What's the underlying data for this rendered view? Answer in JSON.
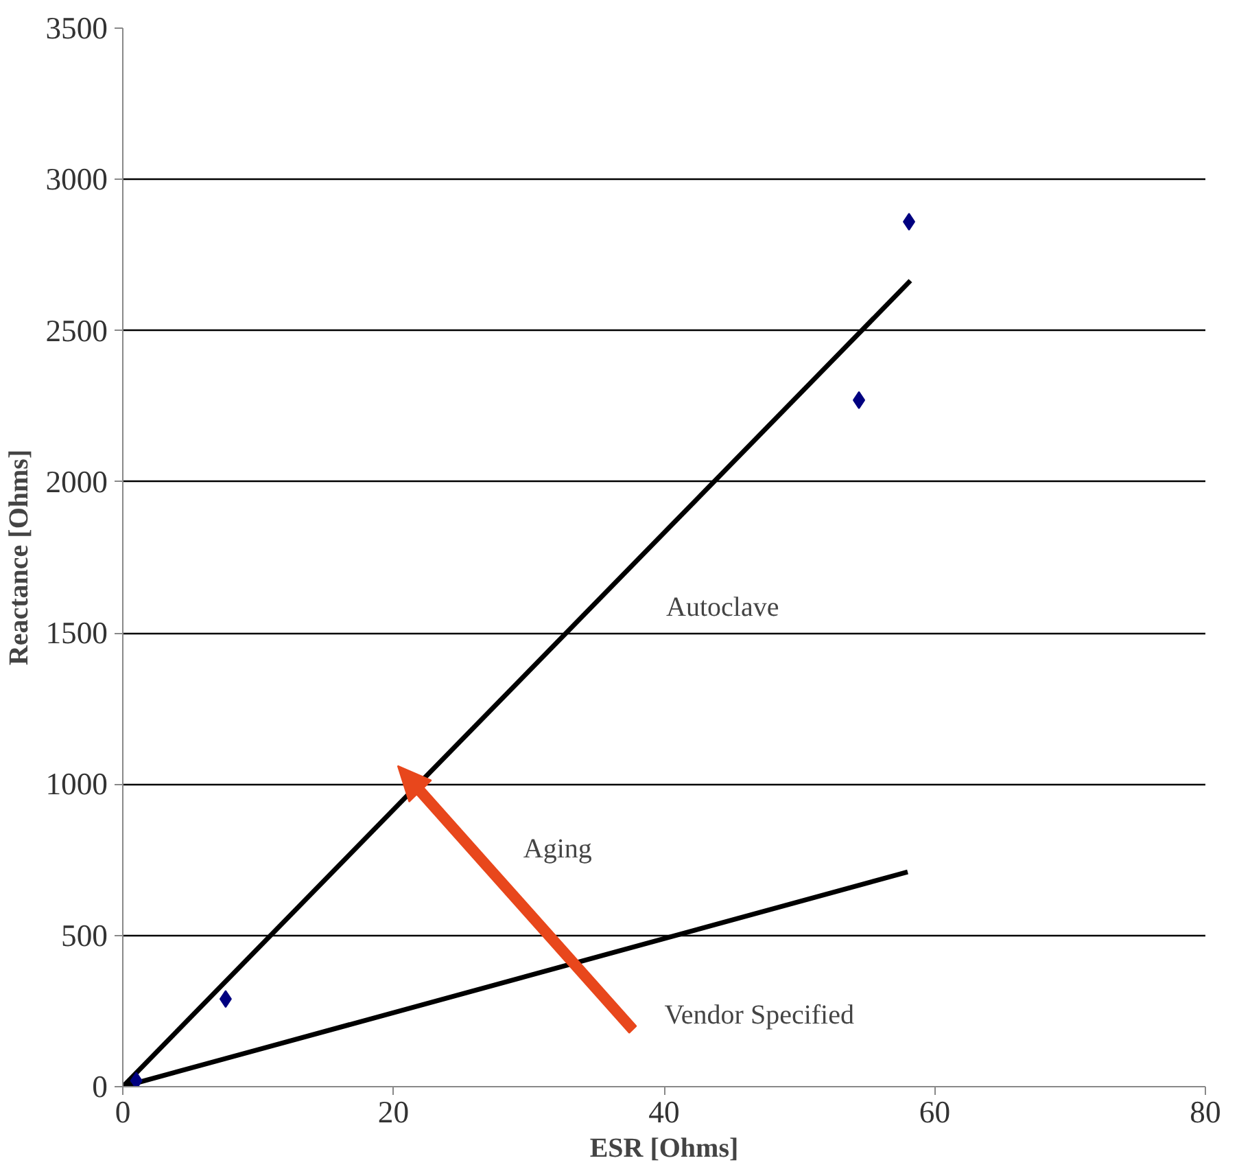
{
  "chart_data": {
    "type": "scatter",
    "xlabel": "ESR [Ohms]",
    "ylabel": "Reactance [Ohms]",
    "xlim": [
      0,
      80
    ],
    "xticks": [
      0,
      20,
      40,
      60,
      80
    ],
    "ylim": [
      0,
      3500
    ],
    "yticks": [
      0,
      500,
      1000,
      1500,
      2000,
      2500,
      3000,
      3500
    ],
    "grid": "y",
    "marker": "diamond",
    "series": [
      {
        "type": "line",
        "name": "Autoclave",
        "marker": "none",
        "color": "#000000",
        "x": [
          0,
          58.2
        ],
        "values": [
          0,
          2665
        ]
      },
      {
        "type": "line",
        "name": "Vendor Specified",
        "marker": "none",
        "color": "#000000",
        "x": [
          0,
          58
        ],
        "values": [
          0,
          710
        ]
      },
      {
        "color": "#000080",
        "x": [
          1,
          7.6,
          54.4,
          58.1
        ],
        "values": [
          20,
          290,
          2270,
          2860
        ]
      }
    ],
    "annotations": [
      "Aging"
    ]
  }
}
